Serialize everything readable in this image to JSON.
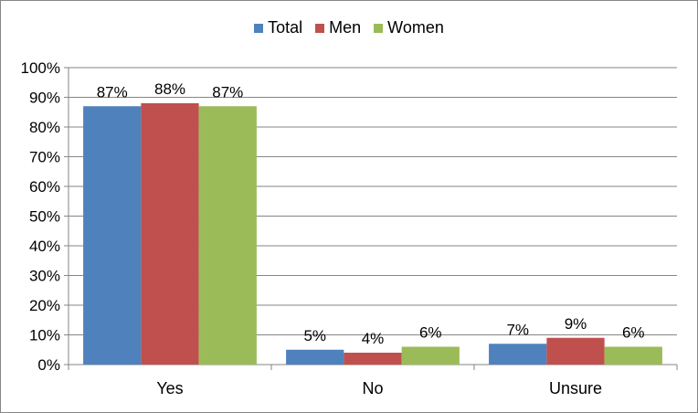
{
  "chart_data": {
    "type": "bar",
    "title": "",
    "xlabel": "",
    "ylabel": "",
    "categories": [
      "Yes",
      "No",
      "Unsure"
    ],
    "series": [
      {
        "name": "Total",
        "color": "#4f81bd",
        "values": [
          87,
          5,
          7
        ],
        "labels": [
          "87%",
          "5%",
          "7%"
        ]
      },
      {
        "name": "Men",
        "color": "#c0504d",
        "values": [
          88,
          4,
          9
        ],
        "labels": [
          "88%",
          "4%",
          "9%"
        ]
      },
      {
        "name": "Women",
        "color": "#9bbb59",
        "values": [
          87,
          6,
          6
        ],
        "labels": [
          "87%",
          "6%",
          "6%"
        ]
      }
    ],
    "ylim": [
      0,
      100
    ],
    "yticks": [
      0,
      10,
      20,
      30,
      40,
      50,
      60,
      70,
      80,
      90,
      100
    ],
    "ytick_labels": [
      "0%",
      "10%",
      "20%",
      "30%",
      "40%",
      "50%",
      "60%",
      "70%",
      "80%",
      "90%",
      "100%"
    ],
    "grid": true,
    "legend_position": "top"
  }
}
